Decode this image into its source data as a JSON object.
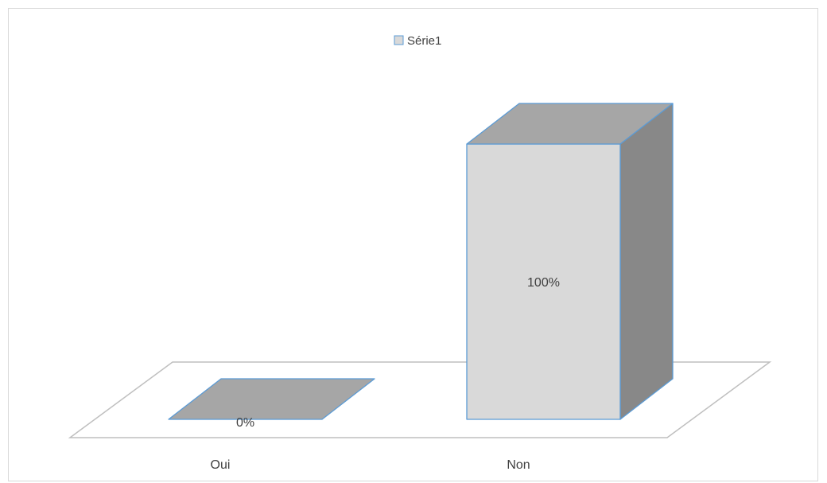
{
  "chart_data": {
    "type": "bar",
    "style": "3d",
    "categories": [
      "Oui",
      "Non"
    ],
    "series": [
      {
        "name": "Série1",
        "values": [
          0,
          100
        ]
      }
    ],
    "data_labels": [
      "0%",
      "100%"
    ],
    "ylim": [
      0,
      100
    ],
    "value_unit": "%",
    "grid": false,
    "legend": {
      "position": "top",
      "entries": [
        "Série1"
      ]
    },
    "colors": {
      "bar_front": "#d9d9d9",
      "bar_top": "#a6a6a6",
      "bar_side": "#888888",
      "bar_outline": "#5b9bd5",
      "floor_outline": "#bfbfbf",
      "text": "#404040"
    }
  }
}
